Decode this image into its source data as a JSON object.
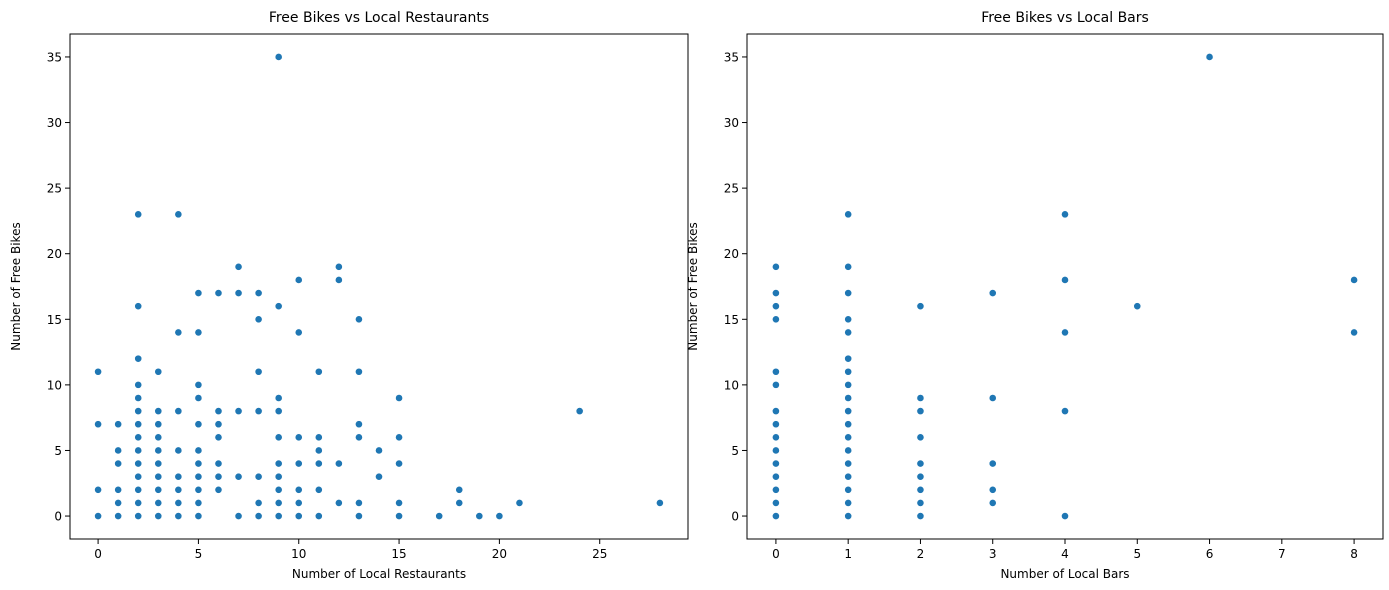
{
  "chart_data": [
    {
      "type": "scatter",
      "title": "Free Bikes vs Local Restaurants",
      "xlabel": "Number of Local Restaurants",
      "ylabel": "Number of Free Bikes",
      "xlim": [
        -1.4,
        29.4
      ],
      "ylim": [
        -1.75,
        36.75
      ],
      "xticks": [
        0,
        5,
        10,
        15,
        20,
        25
      ],
      "yticks": [
        0,
        5,
        10,
        15,
        20,
        25,
        30,
        35
      ],
      "marker_color": "#1f77b4",
      "points": [
        [
          0,
          0
        ],
        [
          0,
          2
        ],
        [
          0,
          7
        ],
        [
          0,
          11
        ],
        [
          1,
          0
        ],
        [
          1,
          1
        ],
        [
          1,
          2
        ],
        [
          1,
          4
        ],
        [
          1,
          5
        ],
        [
          1,
          7
        ],
        [
          2,
          0
        ],
        [
          2,
          1
        ],
        [
          2,
          2
        ],
        [
          2,
          3
        ],
        [
          2,
          4
        ],
        [
          2,
          5
        ],
        [
          2,
          6
        ],
        [
          2,
          7
        ],
        [
          2,
          8
        ],
        [
          2,
          9
        ],
        [
          2,
          10
        ],
        [
          2,
          12
        ],
        [
          2,
          16
        ],
        [
          2,
          23
        ],
        [
          3,
          0
        ],
        [
          3,
          1
        ],
        [
          3,
          2
        ],
        [
          3,
          3
        ],
        [
          3,
          4
        ],
        [
          3,
          5
        ],
        [
          3,
          6
        ],
        [
          3,
          7
        ],
        [
          3,
          8
        ],
        [
          3,
          11
        ],
        [
          4,
          0
        ],
        [
          4,
          1
        ],
        [
          4,
          2
        ],
        [
          4,
          3
        ],
        [
          4,
          5
        ],
        [
          4,
          8
        ],
        [
          4,
          14
        ],
        [
          4,
          23
        ],
        [
          5,
          0
        ],
        [
          5,
          1
        ],
        [
          5,
          2
        ],
        [
          5,
          3
        ],
        [
          5,
          4
        ],
        [
          5,
          5
        ],
        [
          5,
          7
        ],
        [
          5,
          9
        ],
        [
          5,
          10
        ],
        [
          5,
          14
        ],
        [
          5,
          17
        ],
        [
          6,
          2
        ],
        [
          6,
          3
        ],
        [
          6,
          4
        ],
        [
          6,
          6
        ],
        [
          6,
          7
        ],
        [
          6,
          8
        ],
        [
          6,
          17
        ],
        [
          7,
          0
        ],
        [
          7,
          3
        ],
        [
          7,
          8
        ],
        [
          7,
          17
        ],
        [
          7,
          19
        ],
        [
          8,
          0
        ],
        [
          8,
          1
        ],
        [
          8,
          3
        ],
        [
          8,
          8
        ],
        [
          8,
          11
        ],
        [
          8,
          15
        ],
        [
          8,
          17
        ],
        [
          9,
          0
        ],
        [
          9,
          1
        ],
        [
          9,
          2
        ],
        [
          9,
          3
        ],
        [
          9,
          4
        ],
        [
          9,
          6
        ],
        [
          9,
          8
        ],
        [
          9,
          9
        ],
        [
          9,
          16
        ],
        [
          9,
          35
        ],
        [
          10,
          0
        ],
        [
          10,
          1
        ],
        [
          10,
          2
        ],
        [
          10,
          4
        ],
        [
          10,
          6
        ],
        [
          10,
          14
        ],
        [
          10,
          18
        ],
        [
          11,
          0
        ],
        [
          11,
          2
        ],
        [
          11,
          4
        ],
        [
          11,
          5
        ],
        [
          11,
          6
        ],
        [
          11,
          11
        ],
        [
          12,
          1
        ],
        [
          12,
          4
        ],
        [
          12,
          18
        ],
        [
          12,
          19
        ],
        [
          13,
          0
        ],
        [
          13,
          1
        ],
        [
          13,
          6
        ],
        [
          13,
          7
        ],
        [
          13,
          11
        ],
        [
          13,
          15
        ],
        [
          14,
          3
        ],
        [
          14,
          5
        ],
        [
          15,
          0
        ],
        [
          15,
          1
        ],
        [
          15,
          4
        ],
        [
          15,
          6
        ],
        [
          15,
          9
        ],
        [
          17,
          0
        ],
        [
          18,
          1
        ],
        [
          18,
          2
        ],
        [
          19,
          0
        ],
        [
          20,
          0
        ],
        [
          21,
          1
        ],
        [
          24,
          8
        ],
        [
          28,
          1
        ]
      ]
    },
    {
      "type": "scatter",
      "title": "Free Bikes vs Local Bars",
      "xlabel": "Number of Local Bars",
      "ylabel": "Number of Free Bikes",
      "xlim": [
        -0.4,
        8.4
      ],
      "ylim": [
        -1.75,
        36.75
      ],
      "xticks": [
        0,
        1,
        2,
        3,
        4,
        5,
        6,
        7,
        8
      ],
      "yticks": [
        0,
        5,
        10,
        15,
        20,
        25,
        30,
        35
      ],
      "marker_color": "#1f77b4",
      "points": [
        [
          0,
          0
        ],
        [
          0,
          1
        ],
        [
          0,
          2
        ],
        [
          0,
          3
        ],
        [
          0,
          4
        ],
        [
          0,
          5
        ],
        [
          0,
          6
        ],
        [
          0,
          7
        ],
        [
          0,
          8
        ],
        [
          0,
          10
        ],
        [
          0,
          11
        ],
        [
          0,
          15
        ],
        [
          0,
          16
        ],
        [
          0,
          17
        ],
        [
          0,
          19
        ],
        [
          1,
          0
        ],
        [
          1,
          1
        ],
        [
          1,
          2
        ],
        [
          1,
          3
        ],
        [
          1,
          4
        ],
        [
          1,
          5
        ],
        [
          1,
          6
        ],
        [
          1,
          7
        ],
        [
          1,
          8
        ],
        [
          1,
          9
        ],
        [
          1,
          10
        ],
        [
          1,
          11
        ],
        [
          1,
          12
        ],
        [
          1,
          14
        ],
        [
          1,
          15
        ],
        [
          1,
          17
        ],
        [
          1,
          19
        ],
        [
          1,
          23
        ],
        [
          2,
          0
        ],
        [
          2,
          1
        ],
        [
          2,
          2
        ],
        [
          2,
          3
        ],
        [
          2,
          4
        ],
        [
          2,
          6
        ],
        [
          2,
          8
        ],
        [
          2,
          9
        ],
        [
          2,
          16
        ],
        [
          3,
          1
        ],
        [
          3,
          2
        ],
        [
          3,
          4
        ],
        [
          3,
          9
        ],
        [
          3,
          17
        ],
        [
          4,
          0
        ],
        [
          4,
          8
        ],
        [
          4,
          14
        ],
        [
          4,
          18
        ],
        [
          4,
          23
        ],
        [
          5,
          16
        ],
        [
          6,
          35
        ],
        [
          8,
          14
        ],
        [
          8,
          18
        ]
      ]
    }
  ]
}
